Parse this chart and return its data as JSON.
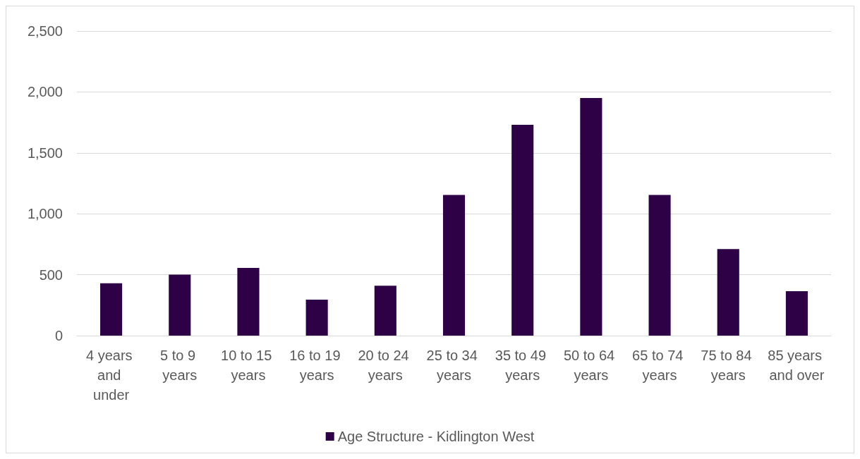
{
  "chart_data": {
    "type": "bar",
    "categories": [
      "4 years and under",
      "5 to 9 years",
      "10 to 15 years",
      "16 to 19 years",
      "20 to 24 years",
      "25 to 34 years",
      "35 to 49 years",
      "50 to 64 years",
      "65 to 74 years",
      "75 to 84 years",
      "85 years and over"
    ],
    "series": [
      {
        "name": "Age Structure - Kidlington West",
        "color": "#2e0046",
        "values": [
          430,
          500,
          555,
          295,
          410,
          1155,
          1730,
          1950,
          1155,
          710,
          365
        ]
      }
    ],
    "ylim": [
      0,
      2500
    ],
    "yticks": [
      0,
      500,
      {
        "value": 1000,
        "label": "1,000"
      },
      {
        "value": 1500,
        "label": "1,500"
      },
      {
        "value": 2000,
        "label": "2,000"
      },
      {
        "value": 2500,
        "label": "2,500"
      }
    ],
    "grid": "y",
    "legend": "bottom"
  }
}
